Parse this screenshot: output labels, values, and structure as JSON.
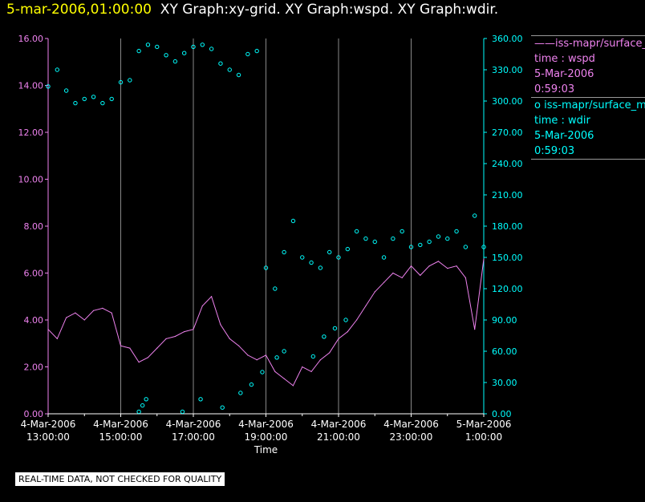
{
  "header": {
    "date": "5-mar-2006,01:00:00",
    "graphs": "XY Graph:xy-grid.  XY Graph:wspd.  XY Graph:wdir."
  },
  "legend": {
    "items": [
      {
        "marker": "——",
        "name": "iss-mapr/surface_m",
        "lines": [
          "time : wspd",
          "5-Mar-2006",
          "0:59:03"
        ],
        "color": "#ee82ee"
      },
      {
        "marker": "o",
        "name": "iss-mapr/surface_m",
        "lines": [
          "time : wdir",
          "5-Mar-2006",
          "0:59:03"
        ],
        "color": "#00ffff"
      }
    ]
  },
  "footer": {
    "quality_note": "REAL-TIME DATA, NOT CHECKED FOR QUALITY"
  },
  "chart_data": {
    "type": "line",
    "xlabel": "Time",
    "x_ticks": [
      {
        "date": "4-Mar-2006",
        "time": "13:00:00"
      },
      {
        "date": "4-Mar-2006",
        "time": "15:00:00"
      },
      {
        "date": "4-Mar-2006",
        "time": "17:00:00"
      },
      {
        "date": "4-Mar-2006",
        "time": "19:00:00"
      },
      {
        "date": "4-Mar-2006",
        "time": "21:00:00"
      },
      {
        "date": "4-Mar-2006",
        "time": "23:00:00"
      },
      {
        "date": "5-Mar-2006",
        "time": "1:00:00"
      }
    ],
    "xlim_hours": [
      13,
      25
    ],
    "y_left": {
      "lim": [
        0,
        16
      ],
      "ticks": [
        "0.00",
        "2.00",
        "4.00",
        "6.00",
        "8.00",
        "10.00",
        "12.00",
        "14.00",
        "16.00"
      ],
      "color": "#ee82ee"
    },
    "y_right": {
      "lim": [
        0,
        360
      ],
      "ticks": [
        "0.00",
        "30.00",
        "60.00",
        "90.00",
        "120.00",
        "150.00",
        "180.00",
        "210.00",
        "240.00",
        "270.00",
        "300.00",
        "330.00",
        "360.00"
      ],
      "color": "#00ffff"
    },
    "grid": "vertical",
    "series": [
      {
        "axis": "left",
        "style": "line",
        "color": "#ee82ee",
        "points": [
          [
            13.0,
            3.6
          ],
          [
            13.25,
            3.2
          ],
          [
            13.5,
            4.1
          ],
          [
            13.75,
            4.3
          ],
          [
            14.0,
            4.0
          ],
          [
            14.25,
            4.4
          ],
          [
            14.5,
            4.5
          ],
          [
            14.75,
            4.3
          ],
          [
            15.0,
            2.9
          ],
          [
            15.25,
            2.8
          ],
          [
            15.5,
            2.2
          ],
          [
            15.75,
            2.4
          ],
          [
            16.0,
            2.8
          ],
          [
            16.25,
            3.2
          ],
          [
            16.5,
            3.3
          ],
          [
            16.75,
            3.5
          ],
          [
            17.0,
            3.6
          ],
          [
            17.25,
            4.6
          ],
          [
            17.5,
            5.0
          ],
          [
            17.75,
            3.8
          ],
          [
            18.0,
            3.2
          ],
          [
            18.25,
            2.9
          ],
          [
            18.5,
            2.5
          ],
          [
            18.75,
            2.3
          ],
          [
            19.0,
            2.5
          ],
          [
            19.25,
            1.8
          ],
          [
            19.5,
            1.5
          ],
          [
            19.75,
            1.2
          ],
          [
            20.0,
            2.0
          ],
          [
            20.25,
            1.8
          ],
          [
            20.5,
            2.3
          ],
          [
            20.75,
            2.6
          ],
          [
            21.0,
            3.2
          ],
          [
            21.25,
            3.5
          ],
          [
            21.5,
            4.0
          ],
          [
            21.75,
            4.6
          ],
          [
            22.0,
            5.2
          ],
          [
            22.25,
            5.6
          ],
          [
            22.5,
            6.0
          ],
          [
            22.75,
            5.8
          ],
          [
            23.0,
            6.3
          ],
          [
            23.25,
            5.9
          ],
          [
            23.5,
            6.3
          ],
          [
            23.75,
            6.5
          ],
          [
            24.0,
            6.2
          ],
          [
            24.25,
            6.3
          ],
          [
            24.5,
            5.8
          ],
          [
            24.75,
            3.6
          ],
          [
            25.0,
            6.6
          ]
        ]
      },
      {
        "axis": "right",
        "style": "markers",
        "color": "#00ffff",
        "points": [
          [
            13.0,
            314
          ],
          [
            13.25,
            330
          ],
          [
            13.5,
            310
          ],
          [
            13.75,
            298
          ],
          [
            14.0,
            302
          ],
          [
            14.25,
            304
          ],
          [
            14.5,
            298
          ],
          [
            14.75,
            302
          ],
          [
            15.0,
            318
          ],
          [
            15.25,
            320
          ],
          [
            15.5,
            348
          ],
          [
            15.75,
            354
          ],
          [
            16.0,
            352
          ],
          [
            16.25,
            344
          ],
          [
            16.5,
            338
          ],
          [
            16.75,
            346
          ],
          [
            17.0,
            352
          ],
          [
            17.25,
            354
          ],
          [
            17.5,
            350
          ],
          [
            17.75,
            336
          ],
          [
            18.0,
            330
          ],
          [
            18.25,
            325
          ],
          [
            18.5,
            345
          ],
          [
            18.75,
            348
          ],
          [
            19.0,
            140
          ],
          [
            19.25,
            120
          ],
          [
            19.5,
            155
          ],
          [
            19.75,
            185
          ],
          [
            20.0,
            150
          ],
          [
            20.25,
            145
          ],
          [
            20.5,
            140
          ],
          [
            20.75,
            155
          ],
          [
            21.0,
            150
          ],
          [
            21.25,
            158
          ],
          [
            21.5,
            175
          ],
          [
            21.75,
            168
          ],
          [
            22.0,
            165
          ],
          [
            22.25,
            150
          ],
          [
            22.5,
            168
          ],
          [
            22.75,
            175
          ],
          [
            23.0,
            160
          ],
          [
            23.25,
            162
          ],
          [
            23.5,
            165
          ],
          [
            23.75,
            170
          ],
          [
            24.0,
            168
          ],
          [
            24.25,
            175
          ],
          [
            24.5,
            160
          ],
          [
            24.75,
            190
          ],
          [
            25.0,
            160
          ]
        ]
      },
      {
        "axis": "right",
        "style": "markers",
        "color": "#00ffff",
        "points": [
          [
            15.5,
            2
          ],
          [
            15.6,
            8
          ],
          [
            15.7,
            14
          ],
          [
            16.7,
            2
          ],
          [
            17.2,
            14
          ],
          [
            17.8,
            6
          ],
          [
            18.3,
            20
          ],
          [
            18.6,
            28
          ],
          [
            18.9,
            40
          ],
          [
            19.3,
            54
          ],
          [
            19.5,
            60
          ],
          [
            20.3,
            55
          ],
          [
            20.6,
            74
          ],
          [
            20.9,
            82
          ],
          [
            21.2,
            90
          ]
        ]
      }
    ]
  }
}
